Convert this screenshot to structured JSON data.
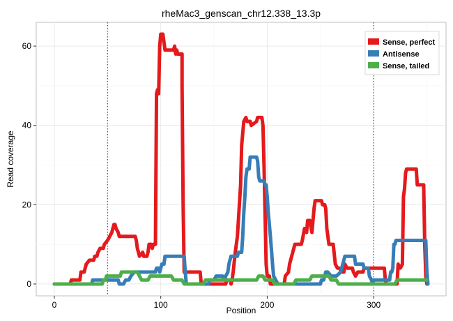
{
  "chart_data": {
    "type": "line",
    "title": "rheMac3_genscan_chr12.338_13.3p",
    "xlabel": "Position",
    "ylabel": "Read coverage",
    "xlim": [
      -17,
      368
    ],
    "ylim": [
      -3,
      66
    ],
    "xticks": [
      0,
      100,
      200,
      300
    ],
    "yticks": [
      0,
      20,
      40,
      60
    ],
    "grid": true,
    "vlines": [
      50,
      300
    ],
    "legend_position": "top-right",
    "series": [
      {
        "name": "Sense, perfect",
        "color": "#E41A1C",
        "points": [
          [
            0,
            0
          ],
          [
            15,
            0
          ],
          [
            16,
            1
          ],
          [
            24,
            1
          ],
          [
            25,
            3
          ],
          [
            28,
            3
          ],
          [
            30,
            5
          ],
          [
            33,
            6
          ],
          [
            37,
            6
          ],
          [
            38,
            7
          ],
          [
            40,
            7
          ],
          [
            41,
            8
          ],
          [
            43,
            9
          ],
          [
            46,
            9
          ],
          [
            47,
            10
          ],
          [
            50,
            11
          ],
          [
            52,
            12
          ],
          [
            54,
            13
          ],
          [
            56,
            15
          ],
          [
            57,
            15
          ],
          [
            58,
            14
          ],
          [
            60,
            13
          ],
          [
            61,
            12
          ],
          [
            70,
            12
          ],
          [
            71,
            12
          ],
          [
            76,
            12
          ],
          [
            77,
            11
          ],
          [
            78,
            9
          ],
          [
            80,
            7
          ],
          [
            83,
            8
          ],
          [
            84,
            7
          ],
          [
            87,
            7
          ],
          [
            88,
            8
          ],
          [
            89,
            10
          ],
          [
            91,
            10
          ],
          [
            92,
            9
          ],
          [
            93,
            10
          ],
          [
            95,
            10
          ],
          [
            96,
            48
          ],
          [
            97,
            49
          ],
          [
            98,
            48
          ],
          [
            99,
            60
          ],
          [
            100,
            63
          ],
          [
            102,
            63
          ],
          [
            103,
            61
          ],
          [
            104,
            59
          ],
          [
            112,
            59
          ],
          [
            113,
            60
          ],
          [
            114,
            58
          ],
          [
            115,
            59
          ],
          [
            116,
            58
          ],
          [
            118,
            58
          ],
          [
            119,
            58
          ],
          [
            120,
            58
          ],
          [
            120,
            50
          ],
          [
            121,
            20
          ],
          [
            122,
            3
          ],
          [
            130,
            3
          ],
          [
            131,
            3
          ],
          [
            137,
            3
          ],
          [
            138,
            0
          ],
          [
            160,
            0
          ],
          [
            161,
            0
          ],
          [
            162,
            1
          ],
          [
            165,
            1
          ],
          [
            166,
            0
          ],
          [
            167,
            1
          ],
          [
            168,
            3
          ],
          [
            170,
            8
          ],
          [
            172,
            12
          ],
          [
            175,
            25
          ],
          [
            176,
            35
          ],
          [
            177,
            38
          ],
          [
            178,
            41
          ],
          [
            180,
            42
          ],
          [
            181,
            41
          ],
          [
            184,
            41
          ],
          [
            185,
            40
          ],
          [
            190,
            41
          ],
          [
            191,
            42
          ],
          [
            195,
            42
          ],
          [
            196,
            40
          ],
          [
            197,
            30
          ],
          [
            199,
            5
          ],
          [
            200,
            2
          ],
          [
            202,
            2
          ],
          [
            203,
            0
          ],
          [
            212,
            0
          ],
          [
            213,
            0
          ],
          [
            216,
            0
          ],
          [
            217,
            2
          ],
          [
            220,
            3
          ],
          [
            221,
            5
          ],
          [
            224,
            8
          ],
          [
            225,
            9
          ],
          [
            226,
            10
          ],
          [
            232,
            10
          ],
          [
            233,
            11
          ],
          [
            235,
            14
          ],
          [
            237,
            13
          ],
          [
            238,
            16
          ],
          [
            240,
            16
          ],
          [
            242,
            13
          ],
          [
            244,
            19
          ],
          [
            245,
            21
          ],
          [
            251,
            21
          ],
          [
            252,
            20
          ],
          [
            254,
            20
          ],
          [
            255,
            19
          ],
          [
            256,
            14
          ],
          [
            258,
            10
          ],
          [
            262,
            10
          ],
          [
            264,
            5
          ],
          [
            266,
            4
          ],
          [
            268,
            4
          ],
          [
            270,
            3
          ],
          [
            272,
            3
          ],
          [
            273,
            5
          ],
          [
            275,
            4
          ],
          [
            280,
            4
          ],
          [
            281,
            3
          ],
          [
            283,
            2
          ],
          [
            285,
            3
          ],
          [
            290,
            3
          ],
          [
            291,
            4
          ],
          [
            300,
            4
          ],
          [
            310,
            4
          ],
          [
            311,
            1
          ],
          [
            312,
            0
          ],
          [
            321,
            0
          ],
          [
            322,
            0
          ],
          [
            323,
            5
          ],
          [
            325,
            4
          ],
          [
            327,
            5
          ],
          [
            328,
            22
          ],
          [
            329,
            24
          ],
          [
            330,
            28
          ],
          [
            331,
            29
          ],
          [
            340,
            29
          ],
          [
            341,
            25
          ],
          [
            347,
            25
          ],
          [
            348,
            10
          ],
          [
            349,
            2
          ],
          [
            350,
            0
          ]
        ]
      },
      {
        "name": "Antisense",
        "color": "#377EB8",
        "points": [
          [
            0,
            0
          ],
          [
            35,
            0
          ],
          [
            36,
            1
          ],
          [
            50,
            1
          ],
          [
            52,
            1
          ],
          [
            60,
            1
          ],
          [
            61,
            0
          ],
          [
            65,
            0
          ],
          [
            67,
            1
          ],
          [
            70,
            1
          ],
          [
            72,
            2
          ],
          [
            75,
            3
          ],
          [
            95,
            3
          ],
          [
            96,
            4
          ],
          [
            98,
            4
          ],
          [
            99,
            3
          ],
          [
            100,
            4
          ],
          [
            101,
            5
          ],
          [
            103,
            5
          ],
          [
            104,
            7
          ],
          [
            122,
            7
          ],
          [
            123,
            3
          ],
          [
            124,
            0
          ],
          [
            145,
            0
          ],
          [
            146,
            1
          ],
          [
            150,
            1
          ],
          [
            152,
            2
          ],
          [
            158,
            2
          ],
          [
            159,
            1
          ],
          [
            160,
            1
          ],
          [
            161,
            2
          ],
          [
            163,
            3
          ],
          [
            164,
            5
          ],
          [
            165,
            6
          ],
          [
            166,
            7
          ],
          [
            172,
            7
          ],
          [
            173,
            8
          ],
          [
            176,
            8
          ],
          [
            177,
            12
          ],
          [
            178,
            18
          ],
          [
            179,
            22
          ],
          [
            180,
            27
          ],
          [
            181,
            29
          ],
          [
            183,
            29
          ],
          [
            184,
            32
          ],
          [
            190,
            32
          ],
          [
            191,
            31
          ],
          [
            192,
            27
          ],
          [
            193,
            26
          ],
          [
            197,
            26
          ],
          [
            198,
            25
          ],
          [
            199,
            25
          ],
          [
            200,
            22
          ],
          [
            201,
            18
          ],
          [
            203,
            12
          ],
          [
            205,
            5
          ],
          [
            206,
            2
          ],
          [
            208,
            1
          ],
          [
            210,
            0
          ],
          [
            250,
            0
          ],
          [
            251,
            1
          ],
          [
            253,
            1
          ],
          [
            254,
            2
          ],
          [
            255,
            3
          ],
          [
            257,
            3
          ],
          [
            260,
            2
          ],
          [
            265,
            2
          ],
          [
            269,
            3
          ],
          [
            270,
            4
          ],
          [
            271,
            5
          ],
          [
            272,
            6
          ],
          [
            273,
            7
          ],
          [
            282,
            7
          ],
          [
            283,
            5
          ],
          [
            290,
            5
          ],
          [
            291,
            4
          ],
          [
            295,
            4
          ],
          [
            296,
            2
          ],
          [
            298,
            1
          ],
          [
            299,
            0
          ],
          [
            300,
            1
          ],
          [
            315,
            1
          ],
          [
            316,
            3
          ],
          [
            317,
            3
          ],
          [
            318,
            4
          ],
          [
            319,
            10
          ],
          [
            320,
            10
          ],
          [
            321,
            11
          ],
          [
            349,
            11
          ],
          [
            350,
            3
          ],
          [
            351,
            0
          ]
        ]
      },
      {
        "name": "Sense, tailed",
        "color": "#4DAF4A",
        "points": [
          [
            0,
            0
          ],
          [
            45,
            0
          ],
          [
            46,
            1
          ],
          [
            48,
            1
          ],
          [
            49,
            2
          ],
          [
            62,
            2
          ],
          [
            63,
            3
          ],
          [
            78,
            3
          ],
          [
            80,
            2
          ],
          [
            82,
            1
          ],
          [
            88,
            1
          ],
          [
            90,
            2
          ],
          [
            110,
            2
          ],
          [
            112,
            1
          ],
          [
            120,
            1
          ],
          [
            122,
            0
          ],
          [
            140,
            0
          ],
          [
            142,
            1
          ],
          [
            190,
            1
          ],
          [
            192,
            2
          ],
          [
            196,
            2
          ],
          [
            198,
            1
          ],
          [
            205,
            1
          ],
          [
            207,
            0
          ],
          [
            225,
            0
          ],
          [
            227,
            1
          ],
          [
            240,
            1
          ],
          [
            242,
            2
          ],
          [
            258,
            2
          ],
          [
            260,
            1
          ],
          [
            265,
            1
          ],
          [
            267,
            0
          ],
          [
            320,
            0
          ],
          [
            322,
            1
          ],
          [
            350,
            1
          ]
        ]
      }
    ]
  }
}
